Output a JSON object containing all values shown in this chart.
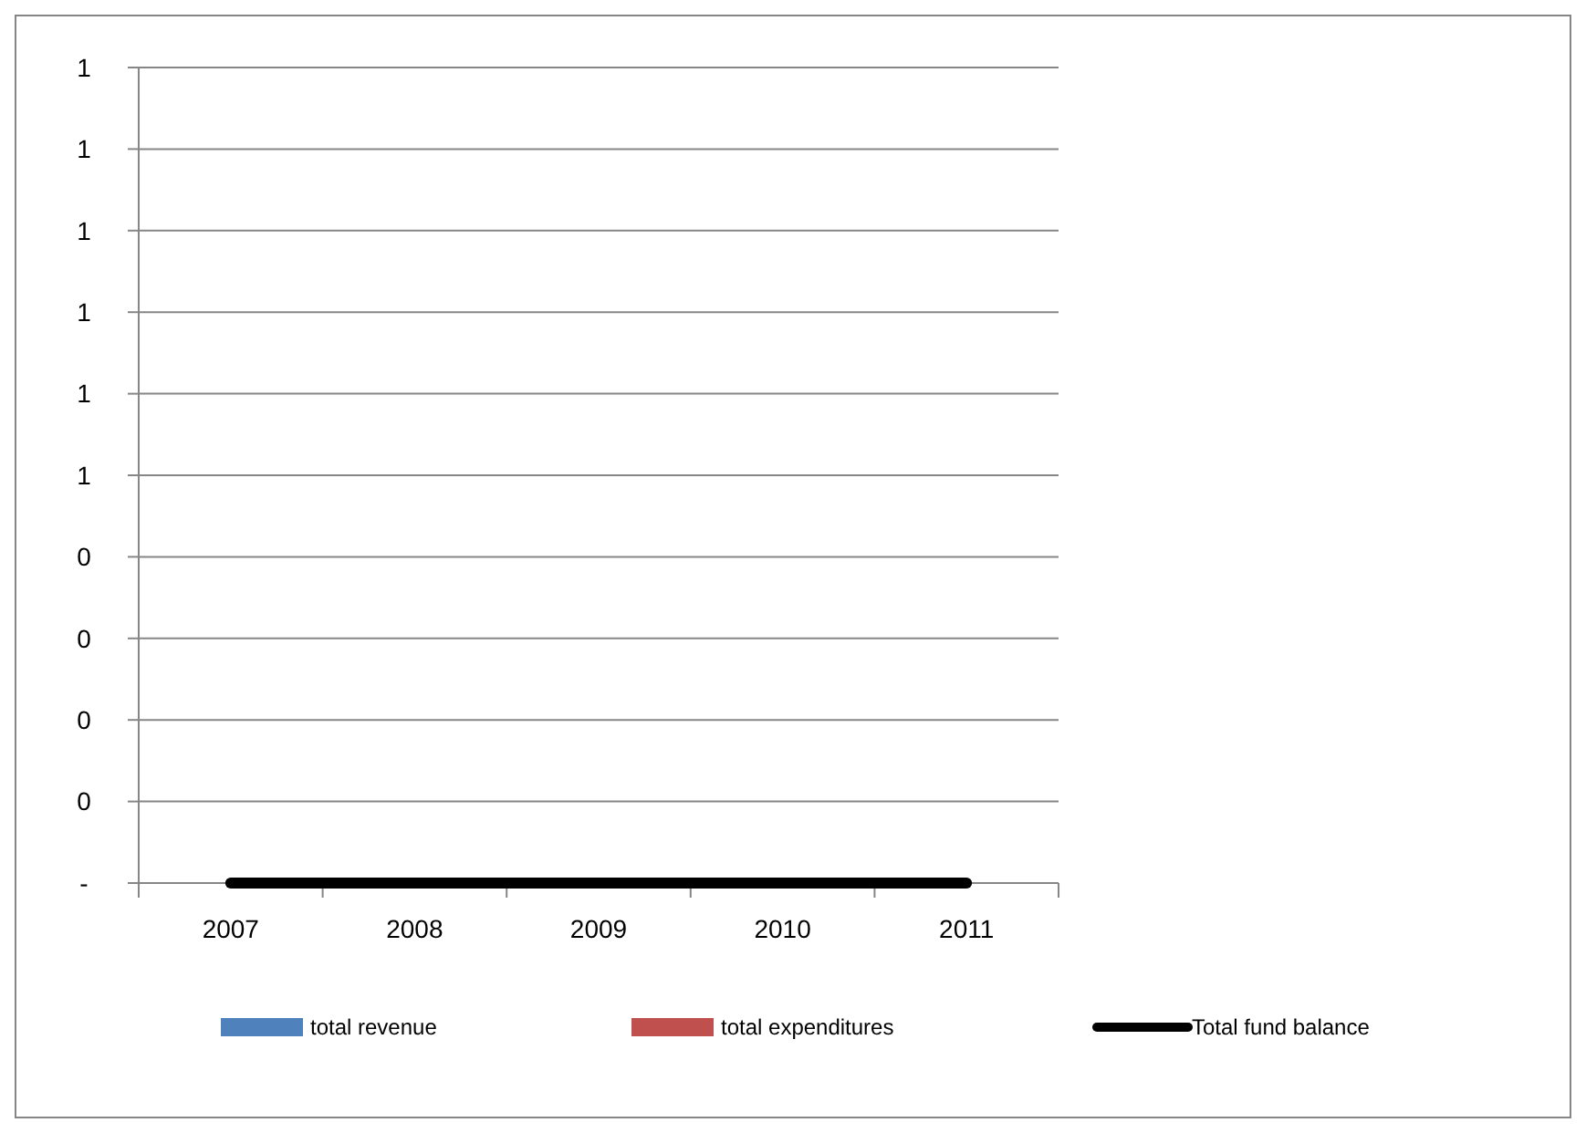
{
  "chart_data": {
    "type": "bar",
    "categories": [
      "2007",
      "2008",
      "2009",
      "2010",
      "2011"
    ],
    "series": [
      {
        "name": "total revenue",
        "color": "#4f81bd",
        "values": [
          0,
          0,
          0,
          0,
          0
        ]
      },
      {
        "name": "total expenditures",
        "color": "#c0504d",
        "values": [
          0,
          0,
          0,
          0,
          0
        ]
      },
      {
        "name": "Total fund balance",
        "type": "line",
        "color": "#000000",
        "values": [
          0,
          0,
          0,
          0,
          0
        ]
      }
    ],
    "ylim": [
      0,
      1
    ],
    "yticks": [
      {
        "value": 0,
        "label": "-"
      },
      {
        "value": 0.1,
        "label": "0"
      },
      {
        "value": 0.2,
        "label": "0"
      },
      {
        "value": 0.3,
        "label": "0"
      },
      {
        "value": 0.4,
        "label": "0"
      },
      {
        "value": 0.5,
        "label": "1"
      },
      {
        "value": 0.6,
        "label": "1"
      },
      {
        "value": 0.7,
        "label": "1"
      },
      {
        "value": 0.8,
        "label": "1"
      },
      {
        "value": 0.9,
        "label": "1"
      },
      {
        "value": 1,
        "label": "1"
      }
    ],
    "grid": "y",
    "legend": "bottom",
    "marker": "none",
    "line_style": "solid"
  }
}
